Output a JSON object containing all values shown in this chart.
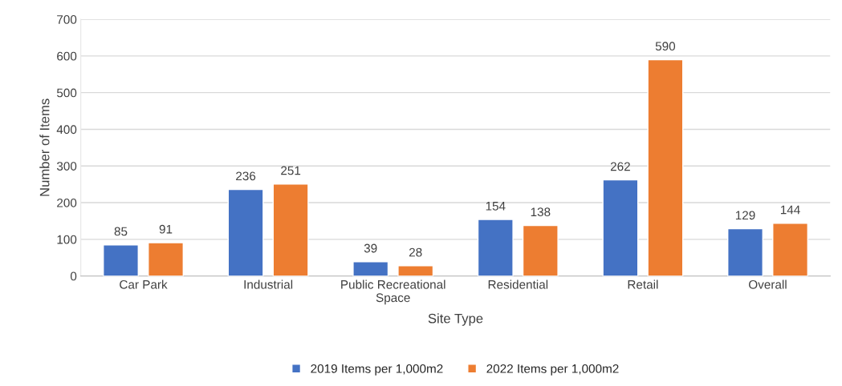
{
  "chart_data": {
    "type": "bar",
    "xlabel": "Site Type",
    "ylabel": "Number of Items",
    "categories": [
      "Car Park",
      "Industrial",
      "Public Recreational\nSpace",
      "Residential",
      "Retail",
      "Overall"
    ],
    "series": [
      {
        "name": "2019 Items per 1,000m2",
        "color": "#4472c4",
        "values": [
          85,
          236,
          39,
          154,
          262,
          129
        ]
      },
      {
        "name": "2022 Items per 1,000m2",
        "color": "#ed7d31",
        "values": [
          91,
          251,
          28,
          138,
          590,
          144
        ]
      }
    ],
    "ylim": [
      0,
      700
    ],
    "yticks": [
      0,
      100,
      200,
      300,
      400,
      500,
      600,
      700
    ],
    "grid": "y",
    "legend": "bottom",
    "data_labels": true
  }
}
